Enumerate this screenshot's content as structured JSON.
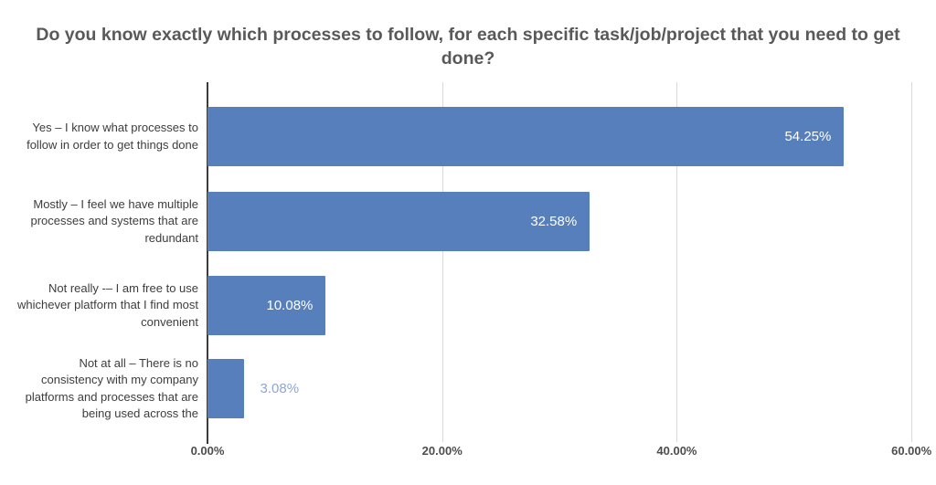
{
  "title": "Do you know exactly which processes to follow, for each specific task/job/project that you need to get done?",
  "chart_data": {
    "type": "bar",
    "orientation": "horizontal",
    "title": "Do you know exactly which processes to follow, for each specific task/job/project that you need to get done?",
    "categories": [
      "Yes – I know what processes to follow in order to get things done",
      "Mostly – I feel we have multiple processes and systems that are redundant",
      "Not really -– I am free to use whichever platform that I find most convenient",
      "Not at all – There is no consistency with my company platforms and processes that are being used across the"
    ],
    "values": [
      54.25,
      32.58,
      10.08,
      3.08
    ],
    "value_labels": [
      "54.25%",
      "32.58%",
      "10.08%",
      "3.08%"
    ],
    "x_ticks": [
      "0.00%",
      "20.00%",
      "40.00%",
      "60.00%"
    ],
    "x_tick_values": [
      0,
      20,
      40,
      60
    ],
    "xlim": [
      0,
      61
    ],
    "grid": "vertical",
    "legend": "none",
    "colors": {
      "bar": "#567fbc",
      "value_label_inside": "#ffffff",
      "value_label_outside": "#8ea6d2",
      "gridline": "#d9d9d9",
      "axis_line": "#3c3c3c",
      "title_text": "#595959",
      "category_text": "#3d3d3d",
      "tick_text": "#4d4d4d"
    },
    "label_inside_threshold": 8
  }
}
